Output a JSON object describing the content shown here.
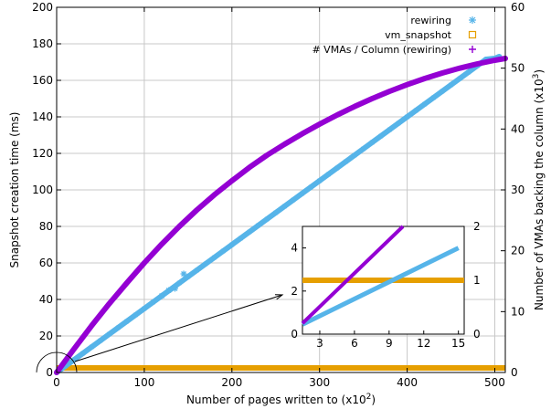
{
  "chart_data": {
    "type": "scatter",
    "xlabel": "Number of pages written to (x10",
    "xlabel_exp": "2",
    "xlabel_end": ")",
    "ylabel": "Snapshot creation time (ms)",
    "y2label": "Number of VMAs backing the column (x10",
    "y2label_exp": "3",
    "y2label_end": ")",
    "xlim": [
      0,
      512
    ],
    "ylim": [
      0,
      200
    ],
    "y2lim": [
      0,
      60
    ],
    "xticks": [
      0,
      100,
      200,
      300,
      400,
      500
    ],
    "yticks": [
      0,
      20,
      40,
      60,
      80,
      100,
      120,
      140,
      160,
      180,
      200
    ],
    "y2ticks": [
      0,
      10,
      20,
      30,
      40,
      50,
      60
    ],
    "legend_position": "top-right",
    "series": [
      {
        "name": "rewiring",
        "axis": "left",
        "marker": "asterisk",
        "color": "#56b4e9",
        "x": [
          0,
          10,
          20,
          30,
          40,
          50,
          60,
          70,
          80,
          90,
          100,
          110,
          120,
          130,
          140,
          150,
          160,
          170,
          180,
          190,
          200,
          210,
          220,
          230,
          240,
          250,
          260,
          270,
          280,
          290,
          300,
          310,
          320,
          330,
          340,
          350,
          360,
          370,
          380,
          390,
          400,
          410,
          420,
          430,
          440,
          450,
          460,
          470,
          480,
          490,
          500,
          505
        ],
        "y": [
          0,
          3.5,
          7,
          10.5,
          14,
          17.5,
          21,
          24.5,
          28,
          31.5,
          35,
          38.5,
          42,
          45.5,
          49,
          52.5,
          56,
          59.5,
          63,
          66.5,
          70,
          73.5,
          77,
          80.5,
          84,
          87.5,
          91,
          94.5,
          98,
          101.5,
          105,
          108.5,
          112,
          115.5,
          119,
          122.5,
          126,
          129.5,
          133,
          136.5,
          140,
          143.5,
          147,
          150.5,
          154,
          157.5,
          161,
          164.5,
          168,
          171.5,
          172,
          173
        ]
      },
      {
        "name": "vm_snapshot",
        "axis": "left",
        "marker": "square",
        "color": "#e69f00",
        "x": [
          0,
          50,
          100,
          150,
          200,
          250,
          300,
          350,
          400,
          450,
          500,
          512
        ],
        "y": [
          2.5,
          2.5,
          2.5,
          2.5,
          2.5,
          2.5,
          2.5,
          2.5,
          2.5,
          2.5,
          2.5,
          2.5
        ]
      },
      {
        "name": "# VMAs / Column (rewiring)",
        "axis": "right",
        "marker": "plus",
        "color": "#9400d3",
        "x": [
          0,
          20,
          40,
          60,
          80,
          100,
          120,
          140,
          160,
          180,
          200,
          220,
          240,
          260,
          280,
          300,
          320,
          340,
          360,
          380,
          400,
          420,
          440,
          460,
          480,
          500,
          512
        ],
        "y": [
          0,
          3.9,
          7.7,
          11.3,
          14.7,
          18,
          21.1,
          24,
          26.7,
          29.2,
          31.5,
          33.7,
          35.7,
          37.5,
          39.2,
          40.8,
          42.3,
          43.7,
          45,
          46.2,
          47.3,
          48.3,
          49.2,
          50,
          50.7,
          51.3,
          51.6
        ]
      }
    ],
    "outliers": [
      {
        "series": "rewiring",
        "x": [
          120,
          128,
          135,
          145
        ],
        "y": [
          42,
          45,
          46,
          54
        ]
      }
    ],
    "inset": {
      "xlim": [
        1.5,
        15.5
      ],
      "ylim": [
        0,
        5
      ],
      "y2lim": [
        0,
        2
      ],
      "xticks": [
        3,
        6,
        9,
        12,
        15
      ],
      "yticks": [
        0,
        2,
        4
      ],
      "y2ticks": [
        0,
        1,
        2
      ],
      "series": [
        {
          "name": "rewiring",
          "x": [
            1.5,
            15
          ],
          "y": [
            0.45,
            4.0
          ]
        },
        {
          "name": "vm_snapshot",
          "x": [
            1.5,
            15.5
          ],
          "y": [
            2.5,
            2.5
          ]
        },
        {
          "name": "# VMAs / Column (rewiring)",
          "x": [
            1.5,
            10.2
          ],
          "y2": [
            0.2,
            2.0
          ]
        }
      ]
    }
  }
}
